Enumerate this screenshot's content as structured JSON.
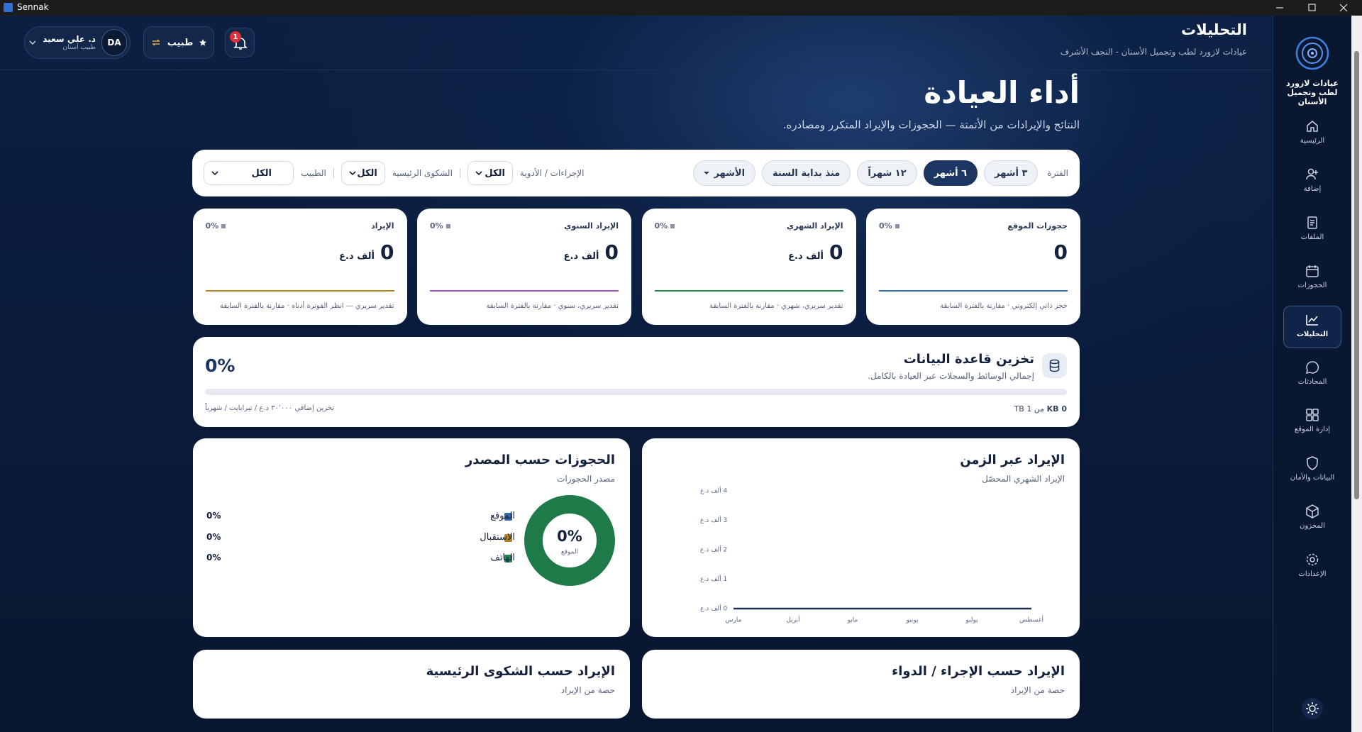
{
  "window": {
    "title": "Sennak"
  },
  "sidebar": {
    "clinic": "عيادات لازورد لطب وتجميل الأسنان",
    "items": [
      "الرئيسية",
      "إضافة",
      "الملفات",
      "الحجوزات",
      "التحليلات",
      "المحادثات",
      "إدارة الموقع",
      "البيانات والأمان",
      "المخزون",
      "الإعدادات"
    ],
    "active": 4
  },
  "header": {
    "title": "التحليلات",
    "subtitle": "عيادات لازورد لطب وتجميل الأسنان - النجف الأشرف",
    "user_name": "د. علي سعيد",
    "user_role": "طبيب أسنان",
    "user_initials": "DA",
    "role_switch": "طبيب",
    "notifications": 1
  },
  "page": {
    "title": "أداء العيادة",
    "subtitle": "النتائج والإيرادات من الأتمتة — الحجوزات والإيراد المتكرر ومصادره."
  },
  "filters": {
    "period_label": "الفترة",
    "periods": [
      "٣ أشهر",
      "٦ أشهر",
      "١٢ شهراً",
      "منذ بداية السنة",
      "الأشهر"
    ],
    "active_period": 1,
    "procedure_label": "الإجراءات / الأدوية",
    "procedure_value": "الكل",
    "complaint_label": "الشكوى الرئيسية",
    "complaint_value": "الكل",
    "doctor_label": "الطبيب",
    "doctor_value": "الكل"
  },
  "kpis": [
    {
      "label": "حجوزات الموقع",
      "value": 0,
      "change": "0%",
      "note": "حجز ذاتي إلكتروني · مقارنة بالفترة السابقة",
      "color": "#2f6db0"
    },
    {
      "label": "الإيراد الشهري",
      "value": 0,
      "unit": "ألف د.ع",
      "change": "0%",
      "note": "تقدير سريري، شهري · مقارنة بالفترة السابقة",
      "color": "#1f8a4c"
    },
    {
      "label": "الإيراد السنوي",
      "value": 0,
      "unit": "ألف د.ع",
      "change": "0%",
      "note": "تقدير سريري، سنوي · مقارنة بالفترة السابقة",
      "color": "#9b4fb8"
    },
    {
      "label": "الإيراد",
      "value": 0,
      "unit": "ألف د.ع",
      "change": "0%",
      "note": "تقدير سريري — انظر الفوترة أدناه · مقارنة بالفترة السابقة",
      "color": "#b5841c"
    }
  ],
  "storage": {
    "title": "تخزين قاعدة البيانات",
    "subtitle": "إجمالي الوسائط والسجلات عبر العيادة بالكامل.",
    "usage": {
      "value": 0,
      "label": "0%"
    },
    "used": "0 KB",
    "total": "من 1 TB",
    "addon": "تخزين إضافي ٣٠٬٠٠٠ د.ع / تيرابايت / شهرياً"
  },
  "chart_data": [
    {
      "type": "pie",
      "title": "الحجوزات حسب المصدر",
      "subtitle": "مصدر الحجوزات",
      "categories": [
        "الموقع",
        "الاستقبال",
        "الهاتف"
      ],
      "values": [
        0,
        0,
        0
      ],
      "value_labels": [
        "0%",
        "0%",
        "0%"
      ],
      "colors": [
        "#2f6db0",
        "#b5841c",
        "#1f8a4c"
      ],
      "center_label": "0%",
      "center_caption": "الموقع",
      "track_color": "#1f7a4a"
    },
    {
      "type": "line",
      "title": "الإيراد عبر الزمن",
      "subtitle": "الإيراد الشهري المحصّل",
      "categories": [
        "مارس",
        "أبريل",
        "مايو",
        "يونيو",
        "يوليو",
        "أغسطس"
      ],
      "values": [
        0,
        0,
        0,
        0,
        0,
        0
      ],
      "color": "#1c2d50",
      "ylim": [
        0,
        4
      ],
      "yticks": [
        {
          "value": 0,
          "label": "0 ألف د.ع"
        },
        {
          "value": 1,
          "label": "1 ألف د.ع"
        },
        {
          "value": 2,
          "label": "2 ألف د.ع"
        },
        {
          "value": 3,
          "label": "3 ألف د.ع"
        },
        {
          "value": 4,
          "label": "4 ألف د.ع"
        }
      ],
      "grid": false
    }
  ],
  "bottom_cards": [
    {
      "title": "الإيراد حسب الإجراء / الدواء",
      "subtitle": "حصة من الإيراد"
    },
    {
      "title": "الإيراد حسب الشكوى الرئيسية",
      "subtitle": "حصة من الإيراد"
    }
  ]
}
